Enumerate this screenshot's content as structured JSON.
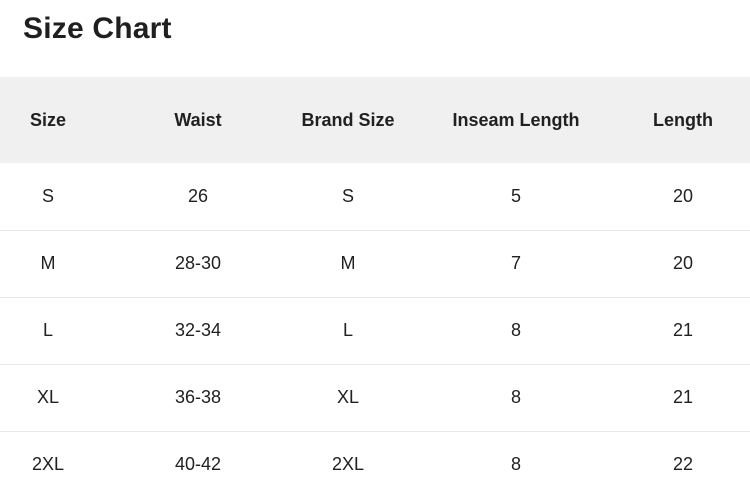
{
  "page": {
    "title": "Size Chart"
  },
  "table": {
    "columns": [
      "Size",
      "Waist",
      "Brand Size",
      "Inseam Length",
      "Length"
    ],
    "rows": [
      [
        "S",
        "26",
        "S",
        "5",
        "20"
      ],
      [
        "M",
        "28-30",
        "M",
        "7",
        "20"
      ],
      [
        "L",
        "32-34",
        "L",
        "8",
        "21"
      ],
      [
        "XL",
        "36-38",
        "XL",
        "8",
        "21"
      ],
      [
        "2XL",
        "40-42",
        "2XL",
        "8",
        "22"
      ]
    ]
  },
  "colors": {
    "background": "#ffffff",
    "header_bg": "#f0f0f0",
    "title_text": "#1f1f1f",
    "cell_text": "#212121",
    "row_divider": "#e9e9e9"
  }
}
